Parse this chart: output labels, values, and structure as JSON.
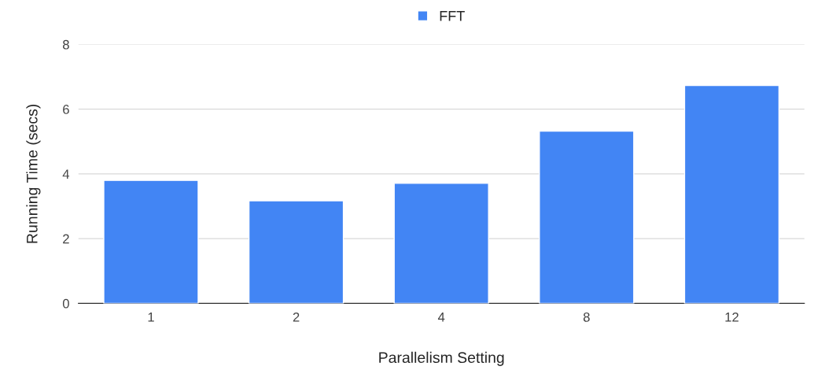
{
  "chart_data": {
    "type": "bar",
    "xlabel": "Parallelism Setting",
    "ylabel": "Running Time (secs)",
    "categories": [
      "1",
      "2",
      "4",
      "8",
      "12"
    ],
    "series": [
      {
        "name": "FFT",
        "color": "#4285f4",
        "values": [
          3.8,
          3.17,
          3.71,
          5.32,
          6.73
        ]
      }
    ],
    "ylim": [
      0,
      8
    ],
    "yticks": [
      0,
      2,
      4,
      6,
      8
    ],
    "grid": "y",
    "legend": "top"
  }
}
